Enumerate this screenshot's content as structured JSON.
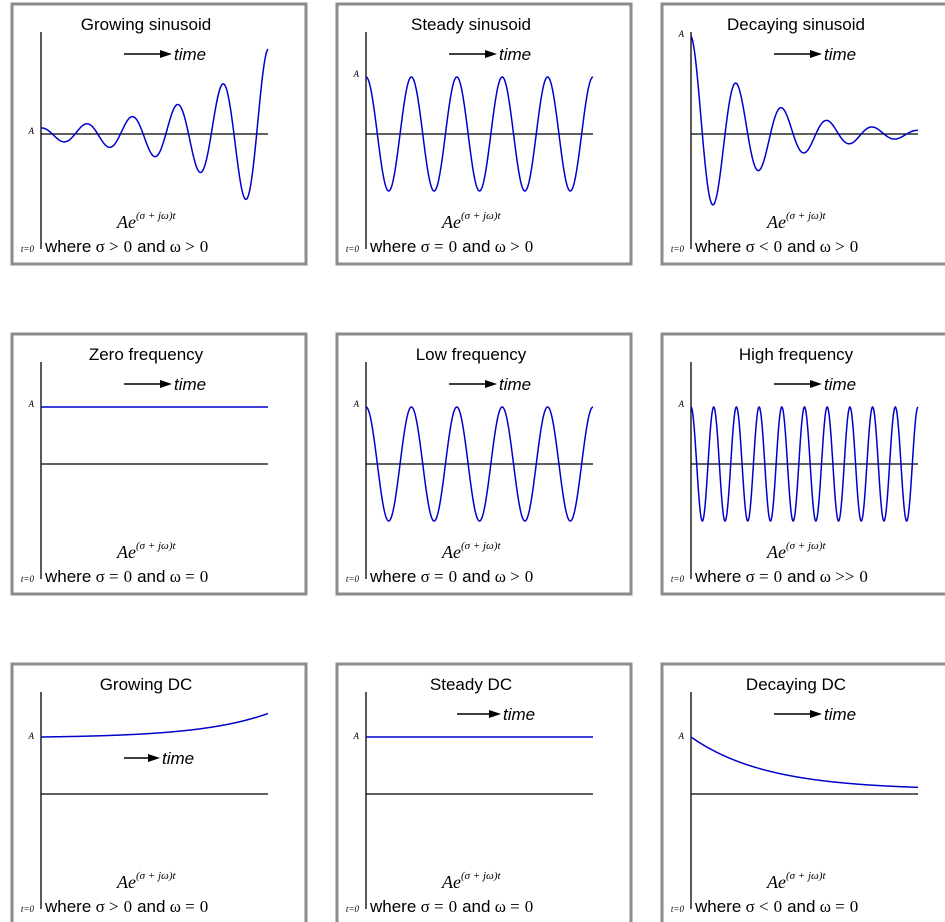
{
  "common": {
    "time_label": "time",
    "amplitude_label": "A",
    "t0_label": "t=0",
    "expression": {
      "base": "Ae",
      "exponent": "(σ + jω)t"
    },
    "where_word": "where",
    "and_word": "and"
  },
  "panels": [
    {
      "title": "Growing sinusoid",
      "sigma_rel": ">",
      "omega_rel": ">",
      "sigma_value": "0",
      "omega_value": "0"
    },
    {
      "title": "Steady sinusoid",
      "sigma_rel": "=",
      "omega_rel": ">",
      "sigma_value": "0",
      "omega_value": "0"
    },
    {
      "title": "Decaying sinusoid",
      "sigma_rel": "<",
      "omega_rel": ">",
      "sigma_value": "0",
      "omega_value": "0"
    },
    {
      "title": "Zero frequency",
      "sigma_rel": "=",
      "omega_rel": "=",
      "sigma_value": "0",
      "omega_value": "0"
    },
    {
      "title": "Low frequency",
      "sigma_rel": "=",
      "omega_rel": ">",
      "sigma_value": "0",
      "omega_value": "0"
    },
    {
      "title": "High frequency",
      "sigma_rel": "=",
      "omega_rel": ">>",
      "sigma_value": "0",
      "omega_value": "0"
    },
    {
      "title": "Growing DC",
      "sigma_rel": ">",
      "omega_rel": "=",
      "sigma_value": "0",
      "omega_value": "0"
    },
    {
      "title": "Steady DC",
      "sigma_rel": "=",
      "omega_rel": "=",
      "sigma_value": "0",
      "omega_value": "0"
    },
    {
      "title": "Decaying DC",
      "sigma_rel": "<",
      "omega_rel": "=",
      "sigma_value": "0",
      "omega_value": "0"
    }
  ],
  "colors": {
    "frame": "#8c8c8c",
    "axis": "#000000",
    "curve": "#0000cc",
    "text": "#000000"
  }
}
